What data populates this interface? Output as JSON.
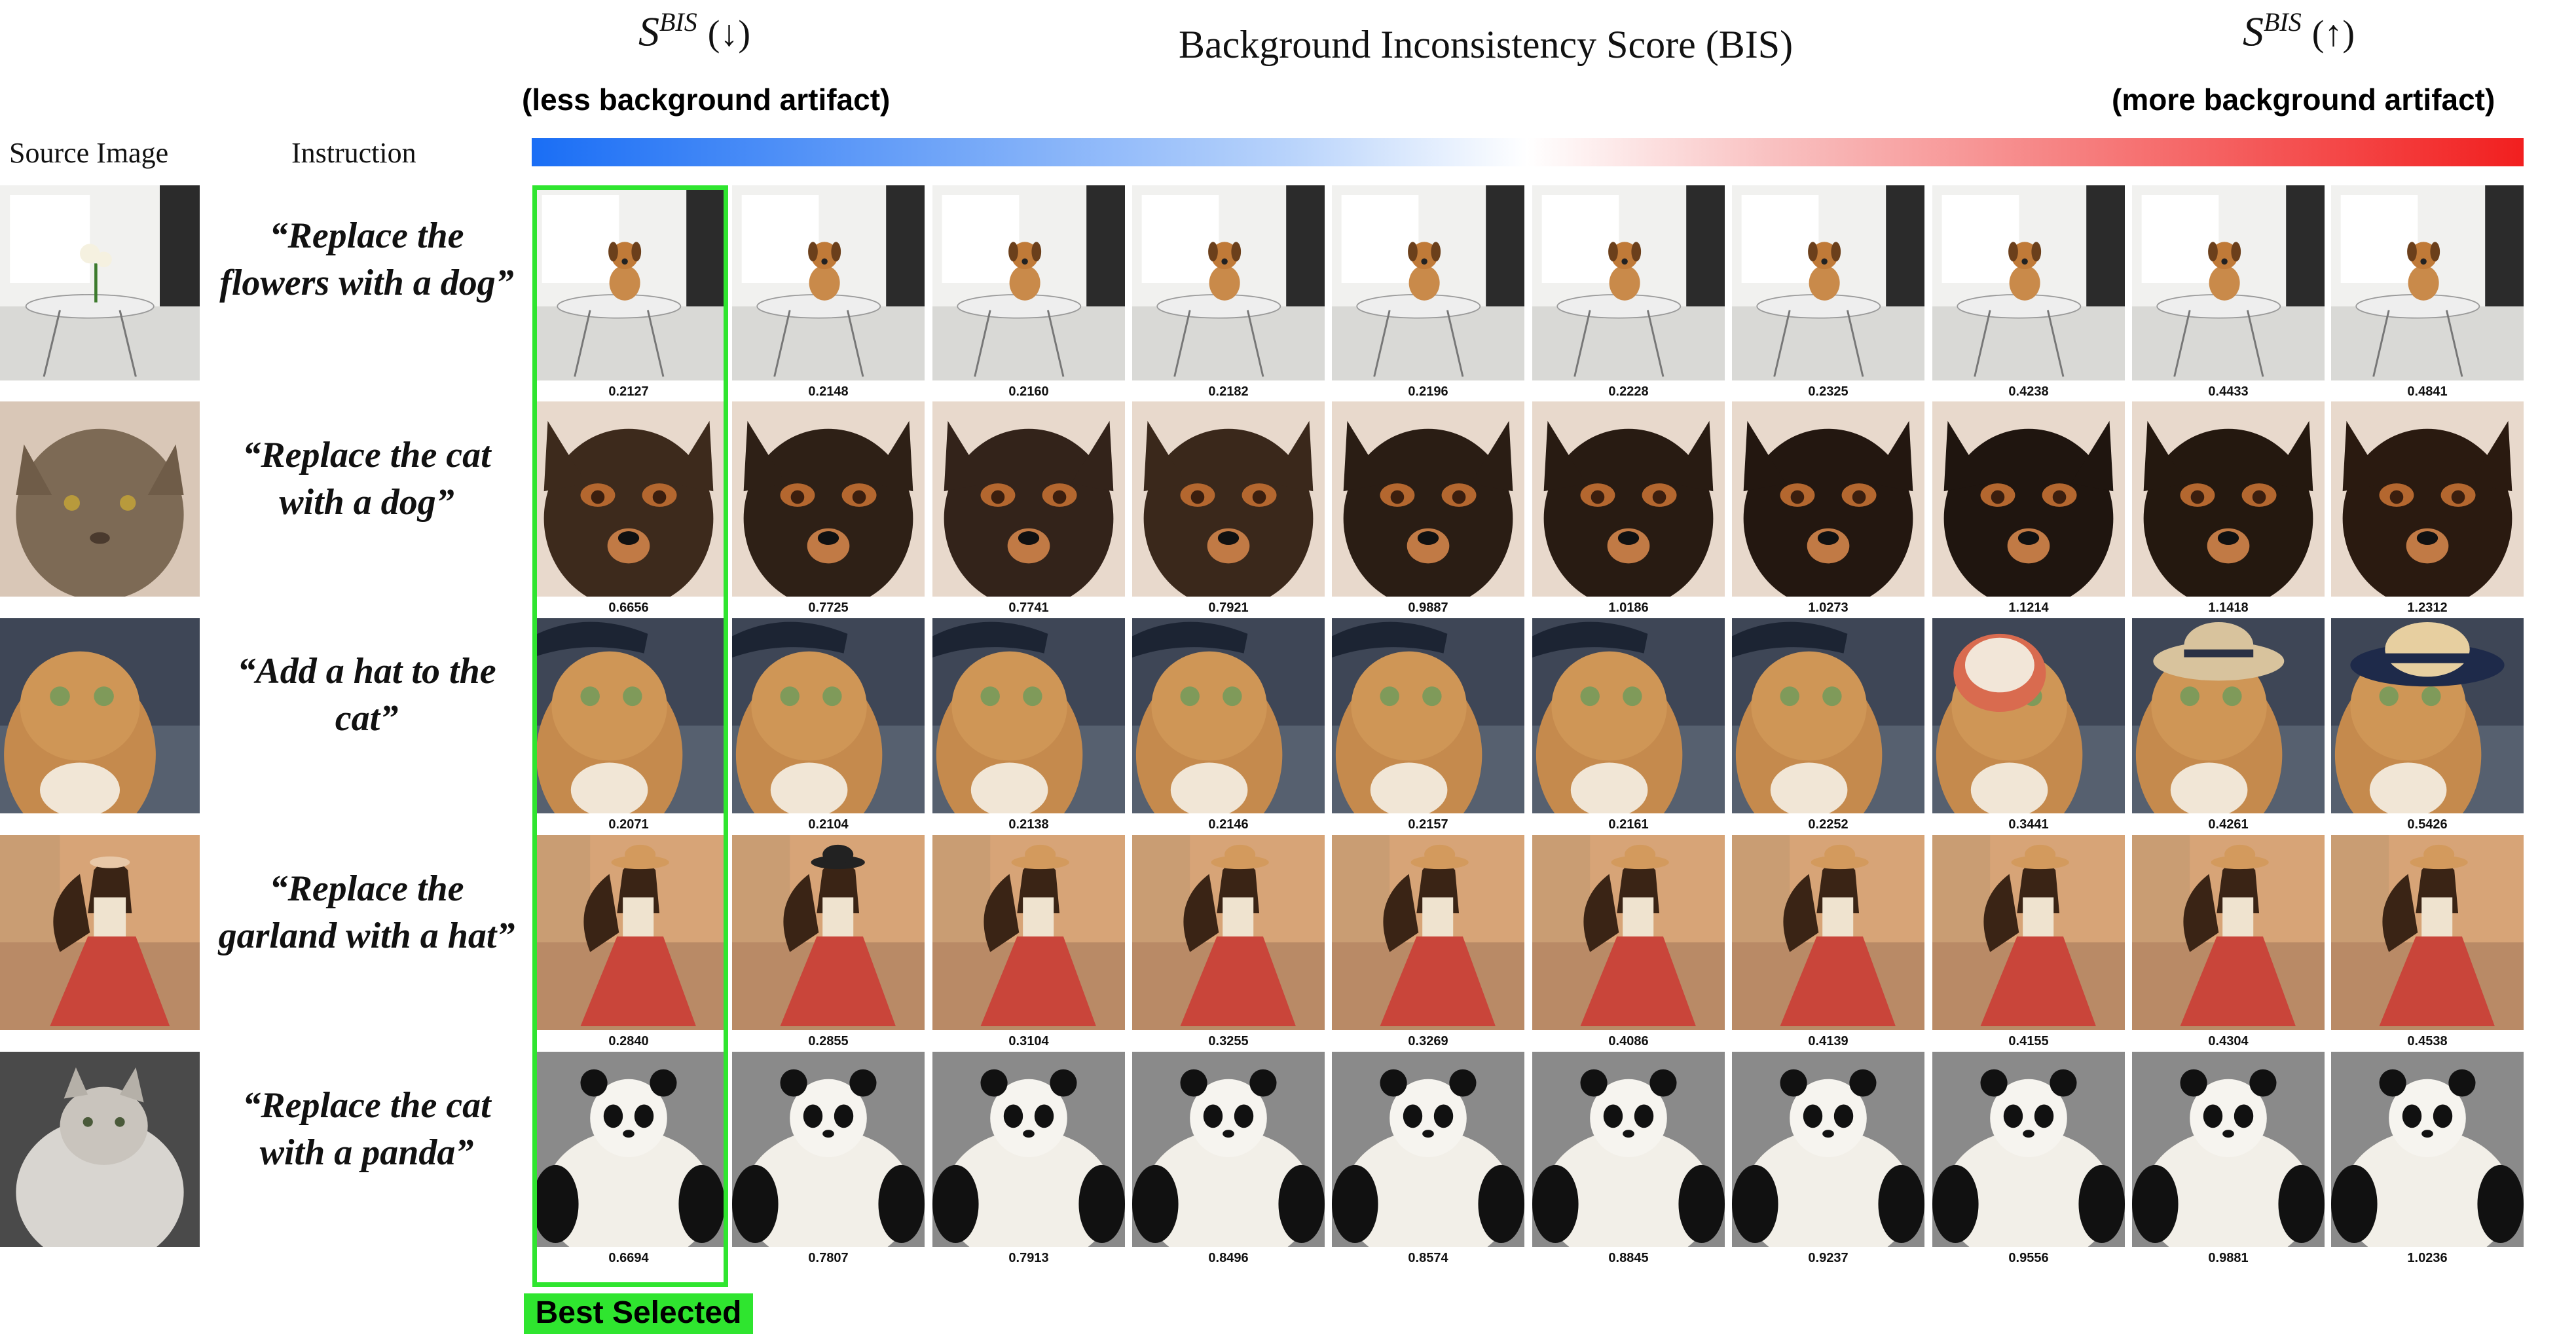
{
  "header": {
    "sbis_symbol": "S",
    "sbis_superscript": "BIS",
    "down_arrow": "(↓)",
    "up_arrow": "(↑)",
    "title": "Background Inconsistency Score (BIS)",
    "less_label": "(less background artifact)",
    "more_label": "(more background artifact)",
    "gradient_colors": [
      "#1a6ef5",
      "#ffffff",
      "#f21f1f"
    ]
  },
  "columns": {
    "source": "Source Image",
    "instruction": "Instruction"
  },
  "rows": [
    {
      "instruction_line1": "“Replace the",
      "instruction_line2": "flowers with a dog”",
      "scene": "table",
      "scores": [
        "0.2127",
        "0.2148",
        "0.2160",
        "0.2182",
        "0.2196",
        "0.2228",
        "0.2325",
        "0.4238",
        "0.4433",
        "0.4841"
      ]
    },
    {
      "instruction_line1": "“Replace the cat",
      "instruction_line2": "with a dog”",
      "scene": "dog",
      "scores": [
        "0.6656",
        "0.7725",
        "0.7741",
        "0.7921",
        "0.9887",
        "1.0186",
        "1.0273",
        "1.1214",
        "1.1418",
        "1.2312"
      ]
    },
    {
      "instruction_line1": "“Add a hat to the",
      "instruction_line2": "cat”",
      "scene": "cat",
      "scores": [
        "0.2071",
        "0.2104",
        "0.2138",
        "0.2146",
        "0.2157",
        "0.2161",
        "0.2252",
        "0.3441",
        "0.4261",
        "0.5426"
      ]
    },
    {
      "instruction_line1": "“Replace the",
      "instruction_line2": "garland with a hat”",
      "scene": "woman",
      "scores": [
        "0.2840",
        "0.2855",
        "0.3104",
        "0.3255",
        "0.3269",
        "0.4086",
        "0.4139",
        "0.4155",
        "0.4304",
        "0.4538"
      ]
    },
    {
      "instruction_line1": "“Replace the cat",
      "instruction_line2": "with a panda”",
      "scene": "panda",
      "scores": [
        "0.6694",
        "0.7807",
        "0.7913",
        "0.8496",
        "0.8574",
        "0.8845",
        "0.9237",
        "0.9556",
        "0.9881",
        "1.0236"
      ]
    }
  ],
  "best_label": "Best Selected",
  "best_color": "#2fe52f"
}
